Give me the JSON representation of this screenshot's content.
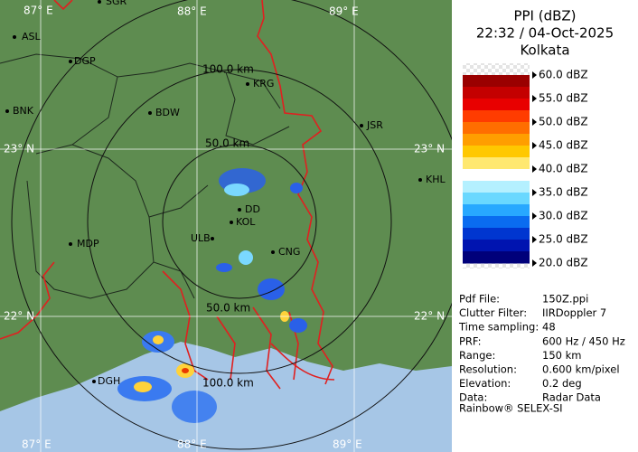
{
  "map": {
    "longitudes": [
      "87° E",
      "88° E",
      "89° E"
    ],
    "latitudes": [
      "23° N",
      "22° N"
    ],
    "range_rings": [
      "50.0 km",
      "100.0 km"
    ],
    "cities": [
      "SGR",
      "ASL",
      "DGP",
      "BNK",
      "BDW",
      "KRG",
      "JSR",
      "KHL",
      "DD",
      "KOL",
      "ULB",
      "CNG",
      "MDP",
      "DGH"
    ]
  },
  "panel": {
    "title": "PPI (dBZ)",
    "time": "22:32 / 04-Oct-2025",
    "site": "Kolkata",
    "scale": {
      "labels": [
        "60.0 dBZ",
        "55.0 dBZ",
        "50.0 dBZ",
        "45.0 dBZ",
        "40.0 dBZ",
        "35.0 dBZ",
        "30.0 dBZ",
        "25.0 dBZ",
        "20.0 dBZ"
      ],
      "colors": [
        "#9a0000",
        "#c40000",
        "#e80000",
        "#ff3c00",
        "#ff6e00",
        "#ff9e00",
        "#ffc800",
        "#ffe870",
        "#ffffff",
        "#b4f0ff",
        "#6ad8ff",
        "#28a8ff",
        "#0a6cf0",
        "#0036d0",
        "#0014b0",
        "#00007a"
      ]
    },
    "info": [
      [
        "Pdf File:",
        "150Z.ppi"
      ],
      [
        "Clutter Filter:",
        "IIRDoppler 7"
      ],
      [
        "Time sampling:",
        "48"
      ],
      [
        "PRF:",
        "600 Hz / 450 Hz"
      ],
      [
        "Range:",
        "150 km"
      ],
      [
        "Resolution:",
        "0.600 km/pixel"
      ],
      [
        "Elevation:",
        "0.2 deg"
      ],
      [
        "Data:",
        "Radar Data"
      ]
    ],
    "footer": "Rainbow® SELEX-SI"
  }
}
